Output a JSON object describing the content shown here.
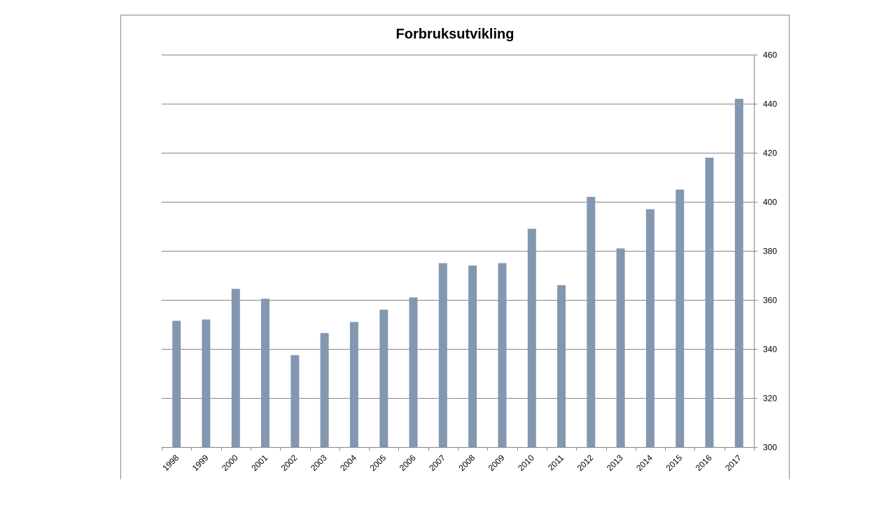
{
  "chart_data": {
    "type": "bar",
    "title": "Forbruksutvikling",
    "categories": [
      "1998",
      "1999",
      "2000",
      "2001",
      "2002",
      "2003",
      "2004",
      "2005",
      "2006",
      "2007",
      "2008",
      "2009",
      "2010",
      "2011",
      "2012",
      "2013",
      "2014",
      "2015",
      "2016",
      "2017"
    ],
    "values": [
      351.5,
      352,
      364.5,
      360.5,
      337.5,
      346.5,
      351,
      356,
      361,
      375,
      374,
      375,
      389,
      366,
      402,
      381,
      397,
      405,
      418,
      442
    ],
    "ylim": [
      300,
      460
    ],
    "yticks": [
      300,
      320,
      340,
      360,
      380,
      400,
      420,
      440,
      460
    ],
    "y_axis_position": "right",
    "grid": true,
    "legend": "none",
    "bar_color": "#8497b0"
  }
}
